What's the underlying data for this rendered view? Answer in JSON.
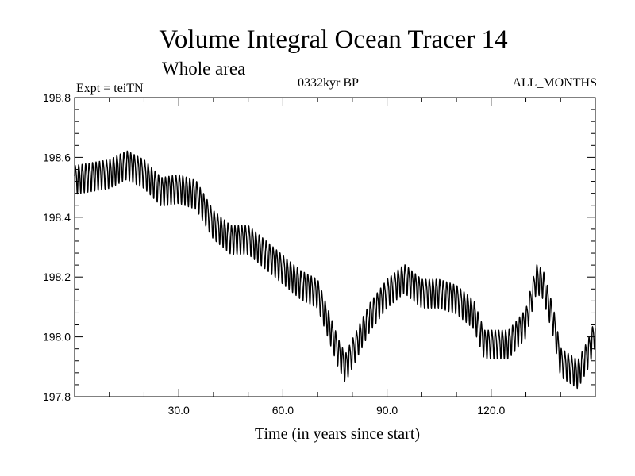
{
  "chart_data": {
    "type": "line",
    "title": "Volume Integral Ocean Tracer 14",
    "subtitle": "Whole area",
    "annotations": {
      "left": "Expt = teiTN",
      "center": "0332kyr BP",
      "right": "ALL_MONTHS"
    },
    "xlabel": "Time (in years since start)",
    "ylabel": "",
    "xlim": [
      0,
      150
    ],
    "ylim": [
      197.8,
      198.8
    ],
    "x_ticks": [
      30,
      60,
      90,
      120
    ],
    "x_tick_labels": [
      "30.0",
      "60.0",
      "90.0",
      "120.0"
    ],
    "y_ticks": [
      197.8,
      198.0,
      198.2,
      198.4,
      198.6,
      198.8
    ],
    "y_tick_labels": [
      "197.8",
      "198.0",
      "198.2",
      "198.4",
      "198.6",
      "198.8"
    ],
    "grid": false,
    "series": [
      {
        "name": "",
        "x": [
          0,
          5,
          10,
          15,
          20,
          25,
          30,
          35,
          40,
          45,
          50,
          55,
          60,
          65,
          70,
          73,
          76,
          78,
          80,
          85,
          90,
          95,
          100,
          105,
          110,
          115,
          118,
          121,
          125,
          130,
          133,
          135,
          138,
          140,
          145,
          148,
          150
        ],
        "y": [
          198.53,
          198.54,
          198.55,
          198.58,
          198.55,
          198.49,
          198.5,
          198.48,
          198.38,
          198.33,
          198.33,
          198.28,
          198.23,
          198.18,
          198.15,
          198.05,
          197.95,
          197.9,
          197.95,
          198.07,
          198.15,
          198.2,
          198.15,
          198.15,
          198.13,
          198.08,
          197.98,
          197.98,
          197.98,
          198.05,
          198.2,
          198.18,
          198.05,
          197.92,
          197.88,
          197.95,
          198.02
        ],
        "seasonal_amplitude": 0.045,
        "cycle_length": 1.0
      }
    ]
  }
}
